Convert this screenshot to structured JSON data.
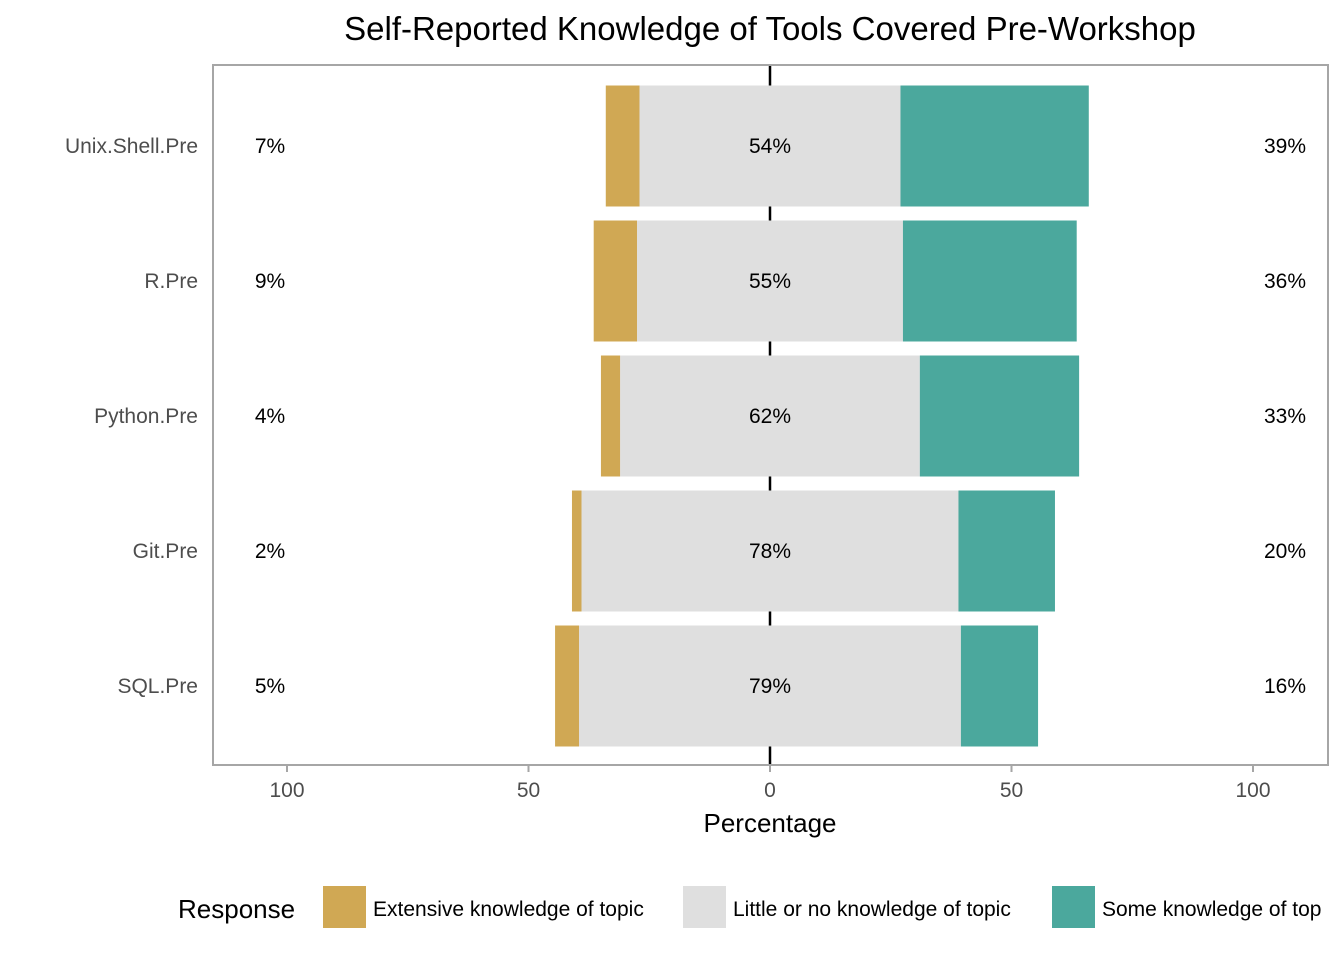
{
  "chart_data": {
    "type": "bar",
    "orientation": "horizontal",
    "layout": "diverging-stacked",
    "title": "Self-Reported Knowledge of Tools Covered Pre-Workshop",
    "xlabel": "Percentage",
    "ylabel": "",
    "xlim": [
      -100,
      100
    ],
    "xticks": [
      -100,
      -50,
      0,
      50,
      100
    ],
    "xtick_labels": [
      "100",
      "50",
      "0",
      "50",
      "100"
    ],
    "categories": [
      "Unix.Shell.Pre",
      "R.Pre",
      "Python.Pre",
      "Git.Pre",
      "SQL.Pre"
    ],
    "series": [
      {
        "name": "Extensive knowledge of topic",
        "color": "#D0A854",
        "values": [
          7,
          9,
          4,
          2,
          5
        ]
      },
      {
        "name": "Little or no knowledge of topic",
        "color": "#DFDFDF",
        "values": [
          54,
          55,
          62,
          78,
          79
        ]
      },
      {
        "name": "Some knowledge of topic",
        "color": "#4BA89D",
        "values": [
          39,
          36,
          33,
          20,
          16
        ]
      }
    ],
    "left_labels": [
      "7%",
      "9%",
      "4%",
      "2%",
      "5%"
    ],
    "center_labels": [
      "54%",
      "55%",
      "62%",
      "78%",
      "79%"
    ],
    "right_labels": [
      "39%",
      "36%",
      "33%",
      "20%",
      "16%"
    ],
    "legend_title": "Response",
    "legend_labels": [
      "Extensive knowledge of topic",
      "Little or no knowledge of topic",
      "Some knowledge of top"
    ],
    "legend_position": "bottom",
    "grid": true
  }
}
